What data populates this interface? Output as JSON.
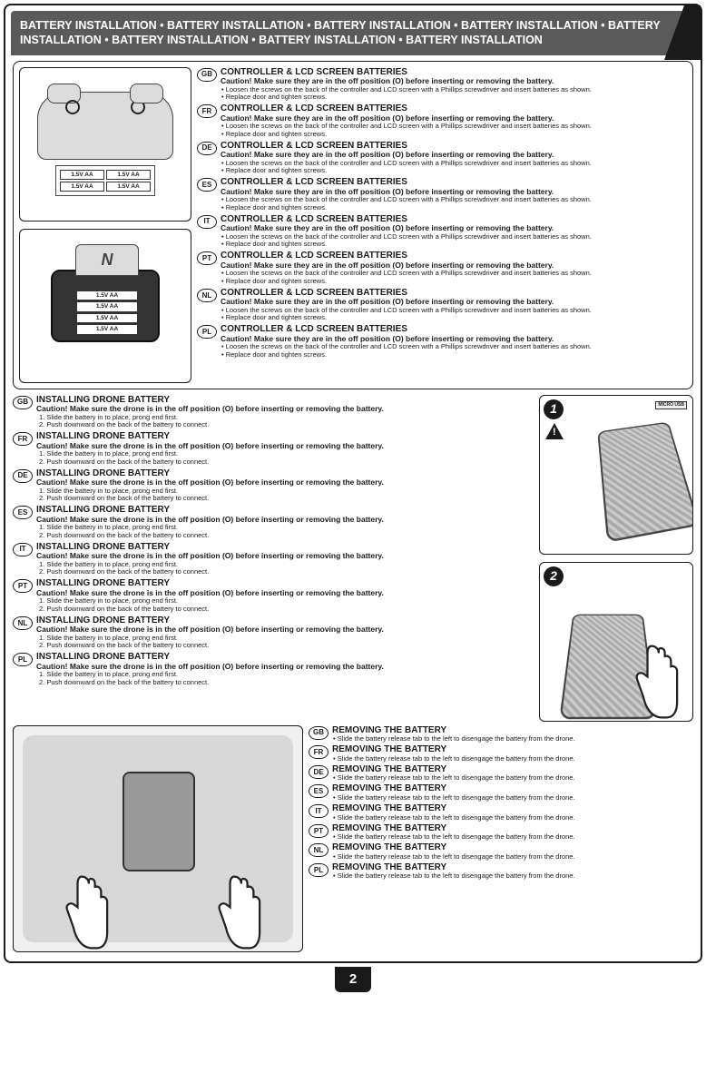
{
  "header": {
    "text": "BATTERY INSTALLATION • BATTERY INSTALLATION • BATTERY INSTALLATION • BATTERY INSTALLATION • BATTERY INSTALLATION • BATTERY INSTALLATION • BATTERY INSTALLATION • BATTERY INSTALLATION"
  },
  "batteryLabel": "1.5V AA",
  "microUsbLabel": "MICRO USB",
  "pageNumber": "2",
  "stepNumbers": [
    "1",
    "2"
  ],
  "languages": [
    "GB",
    "FR",
    "DE",
    "ES",
    "IT",
    "PT",
    "NL",
    "PL"
  ],
  "section1": {
    "title": "CONTROLLER & LCD SCREEN BATTERIES",
    "caution": "Caution! Make sure they are in the off position (O) before inserting or removing the battery.",
    "bullets": [
      "Loosen the screws on the back of the controller and LCD screen  with a Phillips screwdriver and insert batteries as shown.",
      "Replace door and tighten screws."
    ]
  },
  "section2": {
    "title": "INSTALLING DRONE BATTERY",
    "caution": "Caution! Make sure the drone is in the off position (O) before inserting or removing the battery.",
    "steps": [
      "1. Slide the battery in to place, prong end first.",
      "2. Push downward on the back of the battery to connect."
    ]
  },
  "section3": {
    "title": "REMOVING THE BATTERY",
    "bullet": "Slide the battery release tab to the left to disengage the battery from the drone."
  },
  "colors": {
    "headerBg": "#5a5a5a",
    "border": "#1a1a1a",
    "diagramGrey": "#dcdcdc"
  }
}
